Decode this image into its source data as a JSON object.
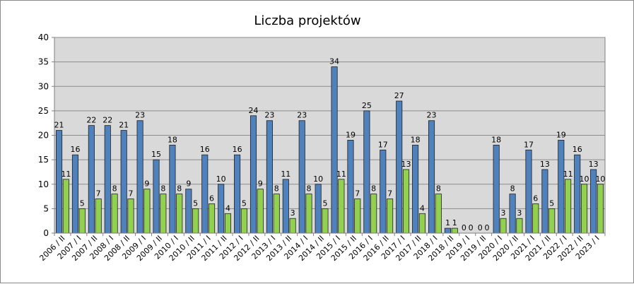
{
  "chart_data": {
    "type": "bar",
    "title": "Liczba projektów",
    "categories": [
      "2006 / II",
      "2007 / I",
      "2007 / II",
      "2008 / I",
      "2008 / II",
      "2009 / I",
      "2009 / II",
      "2010 / I",
      "2010 / II",
      "2011 / I",
      "2011 / II",
      "2012 / I",
      "2012 / II",
      "2013 / I",
      "2013 / II",
      "2014 / I",
      "2014 / II",
      "2015 / I",
      "2015 / II",
      "2016 / I",
      "2016 / II",
      "2017 / I",
      "2017 / II",
      "2018 / I",
      "2018 / II",
      "2019 / I",
      "2019 / II",
      "2020 / I",
      "2020 / II",
      "2021 / I",
      "2021 / II",
      "2022 / I",
      "2022 / II",
      "2023 / I"
    ],
    "series": [
      {
        "values": [
          21,
          16,
          22,
          22,
          21,
          23,
          15,
          18,
          9,
          16,
          10,
          16,
          24,
          23,
          11,
          23,
          10,
          34,
          19,
          25,
          17,
          27,
          18,
          23,
          1,
          0,
          0,
          18,
          8,
          17,
          13,
          19,
          16,
          13
        ],
        "color": "#4f81bd"
      },
      {
        "values": [
          11,
          5,
          7,
          8,
          7,
          9,
          8,
          8,
          5,
          6,
          4,
          5,
          9,
          8,
          3,
          8,
          5,
          11,
          7,
          8,
          7,
          13,
          4,
          8,
          1,
          0,
          0,
          3,
          3,
          6,
          5,
          11,
          10,
          10
        ],
        "color": "#92d050"
      }
    ],
    "ylim": [
      0,
      40
    ],
    "yticks": [
      0,
      5,
      10,
      15,
      20,
      25,
      30,
      35,
      40
    ],
    "grid": true,
    "plot_background": "#d9d9d9",
    "legend": "none"
  }
}
